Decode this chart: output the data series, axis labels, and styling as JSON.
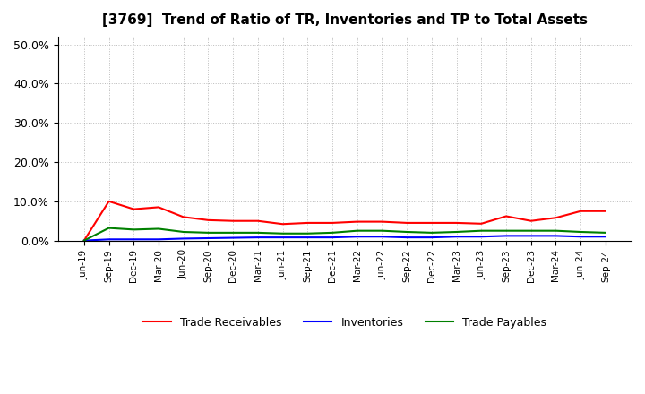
{
  "title": "[3769]  Trend of Ratio of TR, Inventories and TP to Total Assets",
  "x_labels": [
    "Jun-19",
    "Sep-19",
    "Dec-19",
    "Mar-20",
    "Jun-20",
    "Sep-20",
    "Dec-20",
    "Mar-21",
    "Jun-21",
    "Sep-21",
    "Dec-21",
    "Mar-22",
    "Jun-22",
    "Sep-22",
    "Dec-22",
    "Mar-23",
    "Jun-23",
    "Sep-23",
    "Dec-23",
    "Mar-24",
    "Jun-24",
    "Sep-24"
  ],
  "trade_receivables": [
    0.0,
    10.0,
    8.0,
    8.5,
    6.0,
    5.2,
    5.0,
    5.0,
    4.2,
    4.5,
    4.5,
    4.8,
    4.8,
    4.5,
    4.5,
    4.5,
    4.3,
    6.2,
    5.0,
    5.8,
    7.5,
    7.5
  ],
  "inventories": [
    0.0,
    0.3,
    0.3,
    0.3,
    0.5,
    0.6,
    0.7,
    0.8,
    0.8,
    0.8,
    0.8,
    1.0,
    1.0,
    0.8,
    0.8,
    1.0,
    1.0,
    1.2,
    1.2,
    1.2,
    1.0,
    1.0
  ],
  "trade_payables": [
    0.0,
    3.2,
    2.8,
    3.0,
    2.2,
    2.0,
    2.0,
    2.0,
    1.8,
    1.8,
    2.0,
    2.5,
    2.5,
    2.2,
    2.0,
    2.2,
    2.5,
    2.5,
    2.5,
    2.5,
    2.2,
    2.0
  ],
  "tr_color": "#FF0000",
  "inv_color": "#0000FF",
  "tp_color": "#008000",
  "ylim": [
    0,
    52
  ],
  "yticks": [
    0,
    10,
    20,
    30,
    40,
    50
  ],
  "ytick_labels": [
    "0.0%",
    "10.0%",
    "20.0%",
    "30.0%",
    "40.0%",
    "50.0%"
  ],
  "background_color": "#FFFFFF",
  "grid_color": "#AAAAAA"
}
